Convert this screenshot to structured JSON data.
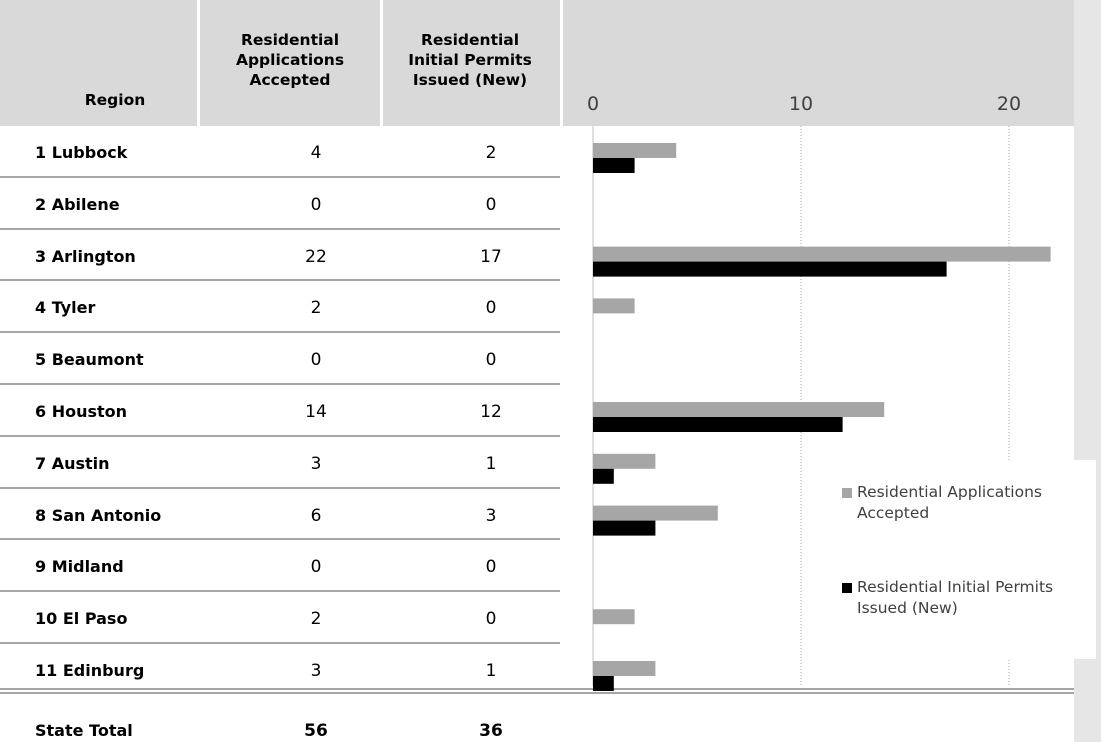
{
  "table": {
    "headers": {
      "region": "Region",
      "applications": "Residential\nApplications\nAccepted",
      "permits": "Residential\nInitial Permits\nIssued (New)"
    },
    "rows": [
      {
        "region": "1 Lubbock",
        "applications": "4",
        "permits": "2"
      },
      {
        "region": "2 Abilene",
        "applications": "0",
        "permits": "0"
      },
      {
        "region": "3 Arlington",
        "applications": "22",
        "permits": "17"
      },
      {
        "region": "4 Tyler",
        "applications": "2",
        "permits": "0"
      },
      {
        "region": "5 Beaumont",
        "applications": "0",
        "permits": "0"
      },
      {
        "region": "6 Houston",
        "applications": "14",
        "permits": "12"
      },
      {
        "region": "7 Austin",
        "applications": "3",
        "permits": "1"
      },
      {
        "region": "8 San Antonio",
        "applications": "6",
        "permits": "3"
      },
      {
        "region": "9 Midland",
        "applications": "0",
        "permits": "0"
      },
      {
        "region": "10 El Paso",
        "applications": "2",
        "permits": "0"
      },
      {
        "region": "11 Edinburg",
        "applications": "3",
        "permits": "1"
      }
    ],
    "total": {
      "label": "State Total",
      "applications": "56",
      "permits": "36"
    }
  },
  "chart_data": {
    "type": "bar",
    "orientation": "horizontal",
    "categories": [
      "1 Lubbock",
      "2 Abilene",
      "3 Arlington",
      "4 Tyler",
      "5 Beaumont",
      "6 Houston",
      "7 Austin",
      "8 San Antonio",
      "9 Midland",
      "10 El Paso",
      "11 Edinburg"
    ],
    "series": [
      {
        "name": "Residential Applications Accepted",
        "color": "#a6a6a6",
        "values": [
          4,
          0,
          22,
          2,
          0,
          14,
          3,
          6,
          0,
          2,
          3
        ]
      },
      {
        "name": "Residential Initial Permits Issued (New)",
        "color": "#000000",
        "values": [
          2,
          0,
          17,
          0,
          0,
          12,
          1,
          3,
          0,
          0,
          1
        ]
      }
    ],
    "xlim": [
      0,
      23
    ],
    "xticks": [
      "0",
      "10",
      "20"
    ],
    "xtick_values": [
      0,
      10,
      20
    ],
    "grid": "vertical dotted",
    "legend_position": "right",
    "title": "",
    "xlabel": "",
    "ylabel": ""
  }
}
